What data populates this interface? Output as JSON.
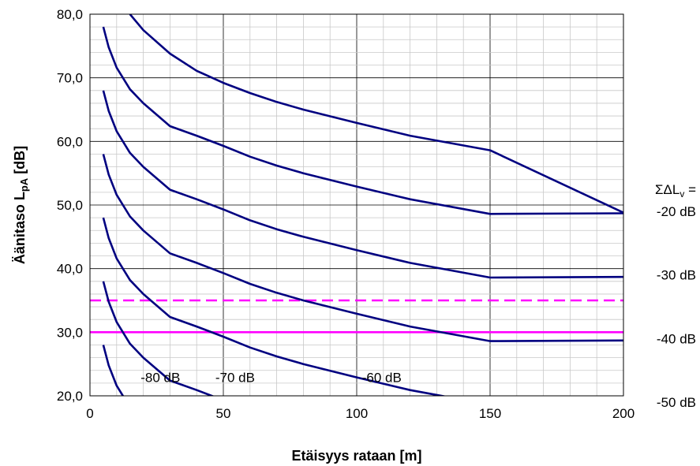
{
  "chart_data": {
    "type": "line",
    "xlabel": "Etäisyys rataan [m]",
    "ylabel_main": "Äänitaso L",
    "ylabel_sub": "pA",
    "ylabel_tail": " [dB]",
    "xlim": [
      0,
      200
    ],
    "ylim": [
      20,
      80
    ],
    "x_ticks": [
      "0",
      "50",
      "100",
      "150",
      "200"
    ],
    "y_ticks": [
      "20,0",
      "30,0",
      "40,0",
      "50,0",
      "60,0",
      "70,0",
      "80,0"
    ],
    "grid": true,
    "right_title": {
      "sigma": "ΣΔL",
      "sub": "v",
      "tail": " ="
    },
    "right_labels": [
      {
        "text": "-20 dB",
        "y": 49
      },
      {
        "text": "-30 dB",
        "y": 39
      },
      {
        "text": "-40 dB",
        "y": 29
      },
      {
        "text": "-50 dB",
        "y": 19
      }
    ],
    "curve_labels": [
      {
        "text": "-80 dB",
        "x": 19,
        "y": 22.2
      },
      {
        "text": "-70 dB",
        "x": 47,
        "y": 22.2
      },
      {
        "text": "-60 dB",
        "x": 102,
        "y": 22.2
      }
    ],
    "x": [
      5,
      7,
      10,
      15,
      20,
      30,
      40,
      50,
      60,
      70,
      80,
      100,
      120,
      150,
      200
    ],
    "series": [
      {
        "values": [
          null,
          null,
          null,
          80.0,
          77.5,
          73.8,
          71.1,
          69.2,
          67.6,
          66.2,
          65.0,
          62.9,
          60.9,
          58.6,
          48.8
        ]
      },
      {
        "values": [
          68.0,
          64.8,
          61.6,
          58.2,
          56.0,
          52.4,
          50.9,
          49.3,
          47.6,
          46.2,
          45.0,
          42.9,
          40.9,
          38.6,
          38.7
        ]
      },
      {
        "values": [
          58.0,
          54.8,
          51.6,
          48.2,
          46.0,
          42.4,
          40.9,
          39.3,
          37.6,
          36.2,
          35.0,
          32.9,
          30.9,
          28.6,
          28.7
        ]
      },
      {
        "values": [
          48.0,
          44.8,
          41.6,
          38.2,
          36.0,
          32.4,
          30.9,
          29.3,
          27.6,
          26.2,
          25.0,
          22.9,
          20.9,
          18.6,
          18.7
        ]
      },
      {
        "values": [
          78.0,
          74.8,
          71.6,
          68.2,
          66.0,
          62.4,
          60.9,
          59.3,
          57.6,
          56.2,
          55.0,
          52.9,
          50.9,
          48.6,
          48.7
        ]
      },
      {
        "values": [
          38.0,
          34.8,
          31.6,
          28.2,
          26.0,
          22.4,
          20.9,
          19.3,
          null,
          null,
          null,
          null,
          null,
          null,
          null
        ]
      },
      {
        "values": [
          28.0,
          24.8,
          21.6,
          18.2,
          null,
          null,
          null,
          null,
          null,
          null,
          null,
          null,
          null,
          null,
          null
        ]
      }
    ],
    "hlines": [
      {
        "y": 35,
        "style": "dashed",
        "color": "#ff00ff"
      },
      {
        "y": 30,
        "style": "solid",
        "color": "#ff00ff"
      }
    ],
    "line_color": "#000080"
  }
}
